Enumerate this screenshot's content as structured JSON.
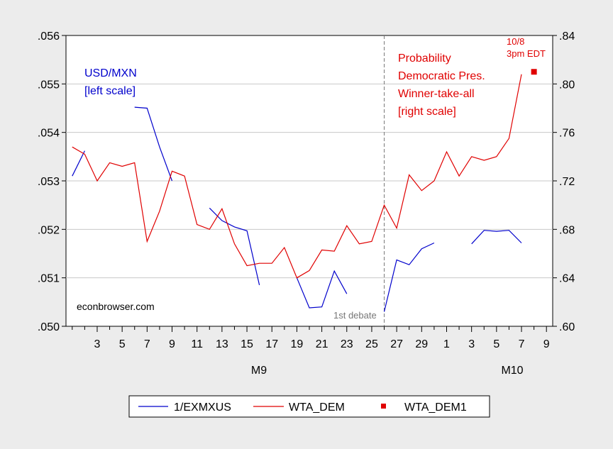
{
  "chart_data": {
    "type": "line",
    "x": [
      "1",
      "2",
      "3",
      "4",
      "5",
      "6",
      "7",
      "8",
      "9",
      "10",
      "11",
      "12",
      "13",
      "14",
      "15",
      "16",
      "17",
      "18",
      "19",
      "20",
      "21",
      "22",
      "23",
      "24",
      "25",
      "26",
      "27",
      "28",
      "29",
      "30",
      "1",
      "2",
      "3",
      "4",
      "5",
      "6",
      "7",
      "8",
      "9"
    ],
    "x_tick_labels": [
      "3",
      "5",
      "7",
      "9",
      "11",
      "13",
      "15",
      "17",
      "19",
      "21",
      "23",
      "25",
      "27",
      "29",
      "1",
      "3",
      "5",
      "7",
      "9"
    ],
    "period_labels": [
      "M9",
      "M10"
    ],
    "left_axis": {
      "ylim": [
        0.05,
        0.056
      ],
      "tick_labels": [
        ".050",
        ".051",
        ".052",
        ".053",
        ".054",
        ".055",
        ".056"
      ]
    },
    "right_axis": {
      "ylim": [
        0.6,
        0.84
      ],
      "tick_labels": [
        ".60",
        ".64",
        ".68",
        ".72",
        ".76",
        ".80",
        ".84"
      ]
    },
    "series": [
      {
        "name": "1/EXMXUS",
        "axis": "left",
        "color": "#0000cc",
        "values": [
          0.0531,
          0.05362,
          null,
          null,
          null,
          0.05452,
          0.0545,
          0.0537,
          0.053,
          null,
          null,
          0.05244,
          0.05218,
          0.05205,
          0.05197,
          0.05085,
          null,
          null,
          0.051,
          0.05038,
          0.0504,
          0.05114,
          0.05067,
          null,
          null,
          0.0503,
          0.05137,
          0.05127,
          0.0516,
          0.05172,
          null,
          null,
          0.0517,
          0.05198,
          0.05196,
          0.05198,
          0.05172,
          null,
          null
        ]
      },
      {
        "name": "WTA_DEM",
        "axis": "right",
        "color": "#e00000",
        "values": [
          0.748,
          0.742,
          0.72,
          0.735,
          0.732,
          0.735,
          0.67,
          0.695,
          0.728,
          0.724,
          0.684,
          0.68,
          0.697,
          0.668,
          0.65,
          0.652,
          0.652,
          0.665,
          0.64,
          0.646,
          0.663,
          0.662,
          0.683,
          0.668,
          0.67,
          0.7,
          0.681,
          0.725,
          0.712,
          0.72,
          0.744,
          0.724,
          0.74,
          0.737,
          0.74,
          0.755,
          0.808,
          null,
          null
        ]
      },
      {
        "name": "WTA_DEM1",
        "axis": "right",
        "color": "#e00000",
        "marker": "square",
        "values": [
          null,
          null,
          null,
          null,
          null,
          null,
          null,
          null,
          null,
          null,
          null,
          null,
          null,
          null,
          null,
          null,
          null,
          null,
          null,
          null,
          null,
          null,
          null,
          null,
          null,
          null,
          null,
          null,
          null,
          null,
          null,
          null,
          null,
          null,
          null,
          null,
          null,
          0.81,
          null
        ]
      }
    ],
    "vline_at_index": 25,
    "annotations": {
      "usd_line1": "USD/MXN",
      "usd_line2": "[left scale]",
      "prob_line1": "Probability",
      "prob_line2": "Democratic Pres.",
      "prob_line3": "Winner-take-all",
      "prob_line4": "[right scale]",
      "date_line1": "10/8",
      "date_line2": "3pm EDT",
      "source": "econbrowser.com",
      "debate": "1st debate"
    },
    "legend_placement": "bottom",
    "grid": true
  }
}
